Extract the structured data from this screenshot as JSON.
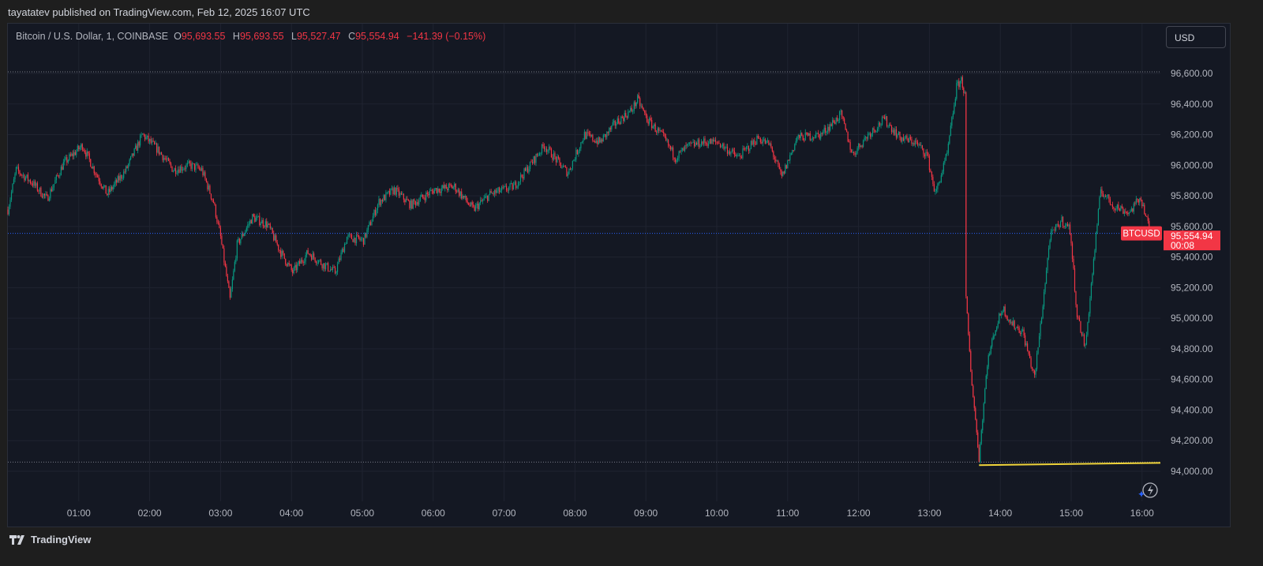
{
  "publish_line": "tayatatev published on TradingView.com, Feb 12, 2025 16:07 UTC",
  "legend": {
    "symbol": "Bitcoin / U.S. Dollar, 1, COINBASE",
    "o_label": "O",
    "o": "95,693.55",
    "h_label": "H",
    "h": "95,693.55",
    "l_label": "L",
    "l": "95,527.47",
    "c_label": "C",
    "c": "95,554.94",
    "change": "−141.39 (−0.15%)"
  },
  "currency_button": "USD",
  "price_tag": {
    "symbol": "BTCUSD",
    "price": "95,554.94",
    "countdown": "00:08"
  },
  "footer_brand": "TradingView",
  "colors": {
    "up": "#089981",
    "down": "#f23645",
    "background": "#141823",
    "price_line": "#2962ff",
    "trend_line": "#f0d43a"
  },
  "icons": [
    "tradingview-logo-icon",
    "lightning-icon"
  ],
  "chart_data": {
    "type": "candlestick",
    "interval": "1 minute",
    "title": "Bitcoin / U.S. Dollar, 1, COINBASE",
    "ylim": [
      93800,
      96800
    ],
    "y_ticks": [
      "96,600.00",
      "96,400.00",
      "96,200.00",
      "96,000.00",
      "95,800.00",
      "95,600.00",
      "95,400.00",
      "95,200.00",
      "95,000.00",
      "94,800.00",
      "94,600.00",
      "94,400.00",
      "94,200.00",
      "94,000.00"
    ],
    "x_ticks": [
      "01:00",
      "02:00",
      "03:00",
      "04:00",
      "05:00",
      "06:00",
      "07:00",
      "08:00",
      "09:00",
      "10:00",
      "11:00",
      "12:00",
      "13:00",
      "14:00",
      "15:00",
      "16:00"
    ],
    "grid": true,
    "current_price": 95554.94,
    "session_high": 96610,
    "session_low": 94060,
    "trend_line": {
      "from": [
        "13:42",
        94040
      ],
      "to": [
        "16:07",
        94055
      ]
    },
    "price_path": [
      [
        "00:00",
        95710
      ],
      [
        "00:07",
        95970
      ],
      [
        "00:20",
        95890
      ],
      [
        "00:33",
        95780
      ],
      [
        "00:47",
        96010
      ],
      [
        "01:03",
        96130
      ],
      [
        "01:13",
        95970
      ],
      [
        "01:24",
        95810
      ],
      [
        "01:40",
        95970
      ],
      [
        "01:54",
        96200
      ],
      [
        "02:07",
        96100
      ],
      [
        "02:20",
        95970
      ],
      [
        "02:34",
        96000
      ],
      [
        "02:44",
        95970
      ],
      [
        "02:54",
        95760
      ],
      [
        "03:00",
        95530
      ],
      [
        "03:08",
        95120
      ],
      [
        "03:14",
        95480
      ],
      [
        "03:27",
        95660
      ],
      [
        "03:40",
        95610
      ],
      [
        "03:51",
        95430
      ],
      [
        "04:01",
        95300
      ],
      [
        "04:14",
        95430
      ],
      [
        "04:27",
        95350
      ],
      [
        "04:37",
        95300
      ],
      [
        "04:47",
        95530
      ],
      [
        "05:01",
        95510
      ],
      [
        "05:14",
        95760
      ],
      [
        "05:27",
        95840
      ],
      [
        "05:41",
        95740
      ],
      [
        "06:01",
        95840
      ],
      [
        "06:18",
        95860
      ],
      [
        "06:34",
        95710
      ],
      [
        "06:48",
        95810
      ],
      [
        "07:08",
        95860
      ],
      [
        "07:21",
        95990
      ],
      [
        "07:34",
        96130
      ],
      [
        "07:48",
        96000
      ],
      [
        "07:54",
        95950
      ],
      [
        "08:08",
        96200
      ],
      [
        "08:21",
        96150
      ],
      [
        "08:35",
        96280
      ],
      [
        "08:48",
        96360
      ],
      [
        "08:53",
        96430
      ],
      [
        "09:01",
        96300
      ],
      [
        "09:15",
        96180
      ],
      [
        "09:25",
        96050
      ],
      [
        "09:35",
        96120
      ],
      [
        "09:48",
        96150
      ],
      [
        "10:01",
        96150
      ],
      [
        "10:18",
        96050
      ],
      [
        "10:35",
        96180
      ],
      [
        "10:45",
        96130
      ],
      [
        "10:55",
        95920
      ],
      [
        "11:08",
        96180
      ],
      [
        "11:28",
        96200
      ],
      [
        "11:45",
        96330
      ],
      [
        "11:55",
        96070
      ],
      [
        "12:08",
        96200
      ],
      [
        "12:22",
        96300
      ],
      [
        "12:35",
        96180
      ],
      [
        "12:48",
        96150
      ],
      [
        "12:58",
        96070
      ],
      [
        "13:05",
        95810
      ],
      [
        "13:15",
        96070
      ],
      [
        "13:23",
        96510
      ],
      [
        "13:27",
        96560
      ],
      [
        "13:30",
        96460
      ],
      [
        "13:31",
        95120
      ],
      [
        "13:35",
        94660
      ],
      [
        "13:42",
        94090
      ],
      [
        "13:49",
        94710
      ],
      [
        "13:55",
        94910
      ],
      [
        "14:02",
        95070
      ],
      [
        "14:09",
        94970
      ],
      [
        "14:19",
        94910
      ],
      [
        "14:29",
        94610
      ],
      [
        "14:35",
        95020
      ],
      [
        "14:42",
        95530
      ],
      [
        "14:52",
        95640
      ],
      [
        "14:59",
        95580
      ],
      [
        "15:05",
        95020
      ],
      [
        "15:12",
        94810
      ],
      [
        "15:19",
        95380
      ],
      [
        "15:25",
        95840
      ],
      [
        "15:35",
        95740
      ],
      [
        "15:49",
        95690
      ],
      [
        "15:59",
        95790
      ],
      [
        "16:07",
        95554.94
      ]
    ]
  }
}
